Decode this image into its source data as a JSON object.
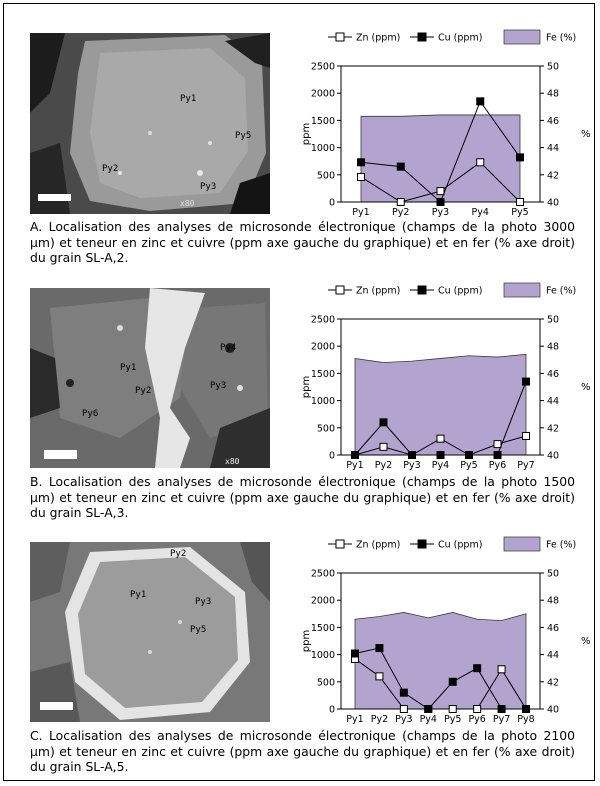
{
  "colors": {
    "fe_fill": "#b3a3cf",
    "fe_stroke": "#3a3a3a",
    "line": "#000000"
  },
  "legend": {
    "zn": "Zn (ppm)",
    "cu": "Cu (ppm)",
    "fe": "Fe (%)"
  },
  "axes": {
    "left_label": "ppm",
    "right_label": "%"
  },
  "photos": [
    {
      "labels": [
        "Py1",
        "Py2",
        "Py5",
        "Py3"
      ],
      "corner_text": "x80"
    },
    {
      "labels": [
        "Py1",
        "Py2",
        "Py3",
        "Py4",
        "Py6"
      ],
      "corner_text": "x80"
    },
    {
      "labels": [
        "Py1",
        "Py2",
        "Py3",
        "Py5"
      ],
      "corner_text": ""
    }
  ],
  "captions": [
    "A. Localisation des analyses de microsonde électronique (champs de la photo 3000 µm) et teneur en zinc et cuivre (ppm axe gauche du graphique) et en fer (% axe droit) du grain SL-A,2.",
    "B. Localisation des analyses de microsonde électronique (champs de la photo 1500 µm) et teneur en zinc et cuivre (ppm axe gauche du graphique) et en fer (% axe droit) du grain SL-A,3.",
    "C. Localisation des analyses de microsonde électronique (champs de la photo 2100 µm) et teneur en zinc et cuivre (ppm axe gauche du graphique) et en fer (% axe droit) du grain SL-A,5."
  ],
  "chart_data": [
    {
      "type": "line",
      "categories": [
        "Py1",
        "Py2",
        "Py3",
        "Py4",
        "Py5"
      ],
      "ylim": [
        0,
        2500
      ],
      "y_ticks": [
        0,
        500,
        1000,
        1500,
        2000,
        2500
      ],
      "y2lim": [
        40,
        50
      ],
      "y2_ticks": [
        40,
        42,
        44,
        46,
        48,
        50
      ],
      "ylabel": "ppm",
      "y2label": "%",
      "series": [
        {
          "name": "Zn (ppm)",
          "axis": "left",
          "marker": "open-square",
          "values": [
            460,
            0,
            200,
            730,
            0
          ]
        },
        {
          "name": "Cu (ppm)",
          "axis": "left",
          "marker": "filled-square",
          "values": [
            730,
            650,
            0,
            1850,
            820
          ]
        },
        {
          "name": "Fe (%)",
          "axis": "right",
          "style": "area",
          "values": [
            46.3,
            46.3,
            46.4,
            46.4,
            46.4
          ]
        }
      ]
    },
    {
      "type": "line",
      "categories": [
        "Py1",
        "Py2",
        "Py3",
        "Py4",
        "Py5",
        "Py6",
        "Py7"
      ],
      "ylim": [
        0,
        2500
      ],
      "y_ticks": [
        0,
        500,
        1000,
        1500,
        2000,
        2500
      ],
      "y2lim": [
        40,
        50
      ],
      "y2_ticks": [
        40,
        42,
        44,
        46,
        48,
        50
      ],
      "ylabel": "ppm",
      "y2label": "%",
      "series": [
        {
          "name": "Zn (ppm)",
          "axis": "left",
          "marker": "open-square",
          "values": [
            0,
            150,
            0,
            300,
            0,
            200,
            350
          ]
        },
        {
          "name": "Cu (ppm)",
          "axis": "left",
          "marker": "filled-square",
          "values": [
            0,
            600,
            0,
            0,
            0,
            0,
            1350
          ]
        },
        {
          "name": "Fe (%)",
          "axis": "right",
          "style": "area",
          "values": [
            47.1,
            46.8,
            46.9,
            47.1,
            47.3,
            47.2,
            47.4
          ]
        }
      ]
    },
    {
      "type": "line",
      "categories": [
        "Py1",
        "Py2",
        "Py3",
        "Py4",
        "Py5",
        "Py6",
        "Py7",
        "Py8"
      ],
      "ylim": [
        0,
        2500
      ],
      "y_ticks": [
        0,
        500,
        1000,
        1500,
        2000,
        2500
      ],
      "y2lim": [
        40,
        50
      ],
      "y2_ticks": [
        40,
        42,
        44,
        46,
        48,
        50
      ],
      "ylabel": "ppm",
      "y2label": "%",
      "series": [
        {
          "name": "Zn (ppm)",
          "axis": "left",
          "marker": "open-square",
          "values": [
            920,
            600,
            0,
            0,
            0,
            0,
            730,
            0
          ]
        },
        {
          "name": "Cu (ppm)",
          "axis": "left",
          "marker": "filled-square",
          "values": [
            1020,
            1120,
            300,
            0,
            500,
            750,
            0,
            0
          ]
        },
        {
          "name": "Fe (%)",
          "axis": "right",
          "style": "area",
          "values": [
            46.6,
            46.8,
            47.1,
            46.7,
            47.1,
            46.6,
            46.5,
            47.0
          ]
        }
      ]
    }
  ]
}
